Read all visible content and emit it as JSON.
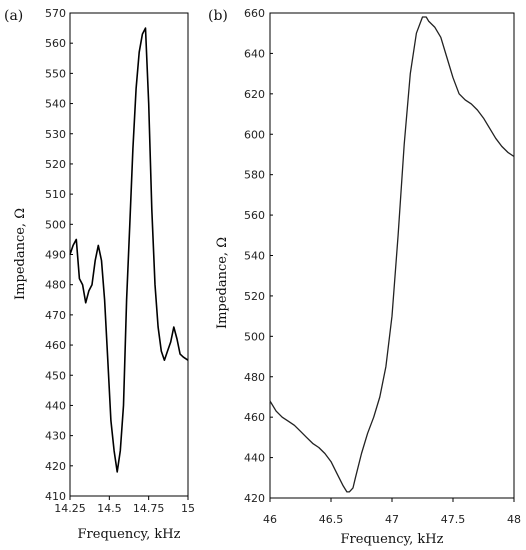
{
  "chart_data": [
    {
      "type": "line",
      "panel_label": "(a)",
      "xlabel": "Frequency, kHz",
      "ylabel": "Impedance, Ω",
      "xlim": [
        14.25,
        15.0
      ],
      "ylim": [
        410,
        570
      ],
      "xticks": [
        "14.25",
        "14.5",
        "14.75",
        "15"
      ],
      "yticks": [
        "410",
        "420",
        "430",
        "440",
        "450",
        "460",
        "470",
        "480",
        "490",
        "500",
        "510",
        "520",
        "530",
        "540",
        "550",
        "560",
        "570"
      ],
      "grid": false,
      "series": [
        {
          "x": [
            14.25,
            14.27,
            14.29,
            14.31,
            14.33,
            14.35,
            14.37,
            14.39,
            14.41,
            14.43,
            14.45,
            14.47,
            14.49,
            14.51,
            14.53,
            14.55,
            14.57,
            14.59,
            14.61,
            14.63,
            14.65,
            14.67,
            14.69,
            14.71,
            14.73,
            14.75,
            14.77,
            14.79,
            14.81,
            14.83,
            14.85,
            14.87,
            14.89,
            14.91,
            14.93,
            14.95,
            14.97,
            15.0
          ],
          "values": [
            490,
            493,
            495,
            482,
            480,
            474,
            478,
            480,
            488,
            493,
            488,
            475,
            455,
            435,
            425,
            418,
            425,
            440,
            475,
            500,
            525,
            545,
            557,
            563,
            565,
            540,
            505,
            480,
            466,
            458,
            455,
            458,
            461,
            466,
            462,
            457,
            456,
            455
          ]
        }
      ]
    },
    {
      "type": "line",
      "panel_label": "(b)",
      "xlabel": "Frequency, kHz",
      "ylabel": "Impedance, Ω",
      "xlim": [
        46,
        48
      ],
      "ylim": [
        420,
        660
      ],
      "xticks": [
        "46",
        "46.5",
        "47",
        "47.5",
        "48"
      ],
      "yticks": [
        "420",
        "440",
        "460",
        "480",
        "500",
        "520",
        "540",
        "560",
        "580",
        "600",
        "620",
        "640",
        "660"
      ],
      "grid": false,
      "series": [
        {
          "x": [
            46.0,
            46.05,
            46.1,
            46.15,
            46.2,
            46.25,
            46.3,
            46.35,
            46.4,
            46.45,
            46.5,
            46.55,
            46.6,
            46.63,
            46.65,
            46.68,
            46.7,
            46.75,
            46.8,
            46.85,
            46.9,
            46.95,
            47.0,
            47.05,
            47.1,
            47.15,
            47.2,
            47.25,
            47.28,
            47.3,
            47.35,
            47.4,
            47.45,
            47.5,
            47.55,
            47.6,
            47.65,
            47.7,
            47.75,
            47.8,
            47.85,
            47.9,
            47.95,
            48.0
          ],
          "values": [
            468,
            463,
            460,
            458,
            456,
            453,
            450,
            447,
            445,
            442,
            438,
            432,
            426,
            423,
            423,
            425,
            430,
            442,
            452,
            460,
            470,
            485,
            510,
            550,
            595,
            630,
            650,
            658,
            658,
            656,
            653,
            648,
            638,
            628,
            620,
            617,
            615,
            612,
            608,
            603,
            598,
            594,
            591,
            589
          ]
        }
      ]
    }
  ]
}
